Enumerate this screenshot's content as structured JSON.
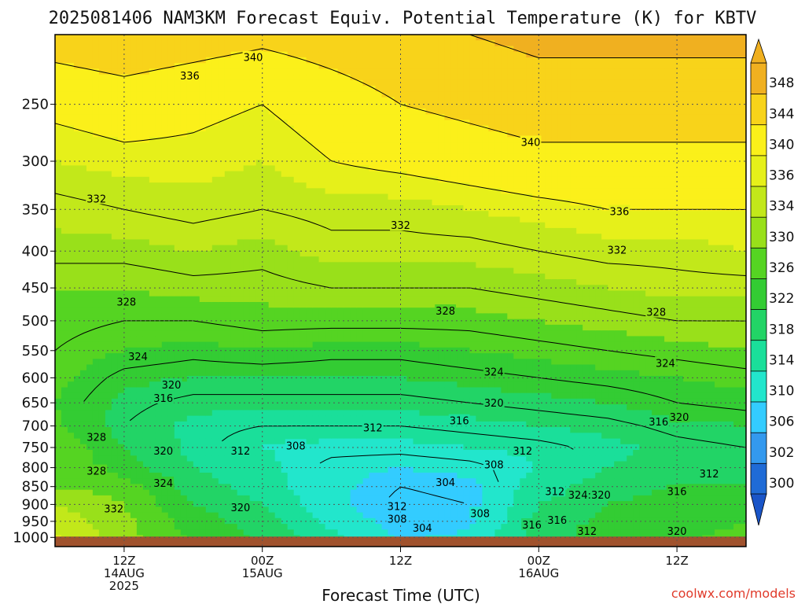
{
  "title": "2025081406 NAM3KM Forecast Equiv. Potential Temperature (K) for KBTV",
  "credit": "coolwx.com/models",
  "chart_data": {
    "type": "heatmap",
    "title": "2025081406 NAM3KM Forecast Equiv. Potential Temperature (K) for KBTV",
    "xlabel": "Forecast Time (UTC)",
    "ylabel": "",
    "y_scale": "log",
    "y_reversed": true,
    "xlim": [
      6,
      66
    ],
    "ylim": [
      1030,
      200
    ],
    "x_ticks": [
      {
        "x": 12,
        "lines": [
          "12Z",
          "14AUG",
          "2025"
        ]
      },
      {
        "x": 24,
        "lines": [
          "00Z",
          "15AUG"
        ]
      },
      {
        "x": 36,
        "lines": [
          "12Z"
        ]
      },
      {
        "x": 48,
        "lines": [
          "00Z",
          "16AUG"
        ]
      },
      {
        "x": 60,
        "lines": [
          "12Z"
        ]
      }
    ],
    "y_ticks": [
      250,
      300,
      350,
      400,
      450,
      500,
      550,
      600,
      650,
      700,
      750,
      800,
      850,
      900,
      950,
      1000
    ],
    "grid": true,
    "ground_level": 1000,
    "colorbar": {
      "levels": [
        300,
        302,
        306,
        310,
        314,
        318,
        322,
        326,
        330,
        334,
        336,
        340,
        344,
        348
      ],
      "colors": [
        "#1f6bd6",
        "#3399ee",
        "#33ccff",
        "#22e6cc",
        "#1adf9a",
        "#22d466",
        "#33cc33",
        "#55d422",
        "#99e01a",
        "#c2e81a",
        "#e6f01a",
        "#fbf01a",
        "#f8d31a",
        "#f0b020"
      ]
    },
    "profiles": [
      {
        "x": 6,
        "theta_e": [
          [
            1030,
            336
          ],
          [
            950,
            333
          ],
          [
            900,
            330
          ],
          [
            850,
            326
          ],
          [
            800,
            324
          ],
          [
            750,
            326
          ],
          [
            700,
            323
          ],
          [
            650,
            322
          ],
          [
            600,
            323
          ],
          [
            550,
            324
          ],
          [
            500,
            325
          ],
          [
            450,
            326
          ],
          [
            400,
            329
          ],
          [
            350,
            331
          ],
          [
            300,
            334
          ],
          [
            250,
            337
          ],
          [
            200,
            342
          ]
        ]
      },
      {
        "x": 12,
        "theta_e": [
          [
            1030,
            328
          ],
          [
            950,
            327
          ],
          [
            900,
            326
          ],
          [
            850,
            324
          ],
          [
            800,
            320
          ],
          [
            750,
            318
          ],
          [
            700,
            316
          ],
          [
            650,
            317
          ],
          [
            600,
            319
          ],
          [
            550,
            322
          ],
          [
            500,
            324
          ],
          [
            450,
            326
          ],
          [
            400,
            329
          ],
          [
            350,
            332
          ],
          [
            300,
            335
          ],
          [
            250,
            338
          ],
          [
            200,
            343
          ]
        ]
      },
      {
        "x": 18,
        "theta_e": [
          [
            1030,
            322
          ],
          [
            950,
            320
          ],
          [
            900,
            318
          ],
          [
            850,
            316
          ],
          [
            800,
            314
          ],
          [
            750,
            313
          ],
          [
            700,
            313
          ],
          [
            650,
            315
          ],
          [
            600,
            318
          ],
          [
            550,
            321
          ],
          [
            500,
            324
          ],
          [
            450,
            327
          ],
          [
            400,
            330
          ],
          [
            350,
            333
          ],
          [
            300,
            335
          ],
          [
            250,
            337
          ],
          [
            200,
            342
          ]
        ]
      },
      {
        "x": 24,
        "theta_e": [
          [
            1030,
            318
          ],
          [
            950,
            316
          ],
          [
            900,
            314
          ],
          [
            850,
            312
          ],
          [
            800,
            311
          ],
          [
            750,
            310
          ],
          [
            700,
            312
          ],
          [
            650,
            315
          ],
          [
            600,
            318
          ],
          [
            550,
            322
          ],
          [
            500,
            325
          ],
          [
            450,
            327
          ],
          [
            400,
            329
          ],
          [
            350,
            332
          ],
          [
            300,
            334
          ],
          [
            250,
            336
          ],
          [
            200,
            341
          ]
        ]
      },
      {
        "x": 30,
        "theta_e": [
          [
            1030,
            312
          ],
          [
            950,
            309
          ],
          [
            900,
            307
          ],
          [
            850,
            307
          ],
          [
            800,
            307
          ],
          [
            750,
            309
          ],
          [
            700,
            312
          ],
          [
            650,
            315
          ],
          [
            600,
            318
          ],
          [
            550,
            321
          ],
          [
            500,
            325
          ],
          [
            450,
            328
          ],
          [
            400,
            331
          ],
          [
            350,
            333
          ],
          [
            300,
            336
          ],
          [
            250,
            338
          ],
          [
            200,
            342
          ]
        ]
      },
      {
        "x": 36,
        "theta_e": [
          [
            1030,
            306
          ],
          [
            950,
            304
          ],
          [
            900,
            303
          ],
          [
            850,
            304
          ],
          [
            800,
            306
          ],
          [
            750,
            309
          ],
          [
            700,
            312
          ],
          [
            650,
            315
          ],
          [
            600,
            318
          ],
          [
            550,
            321
          ],
          [
            500,
            325
          ],
          [
            450,
            328
          ],
          [
            400,
            331
          ],
          [
            350,
            333
          ],
          [
            300,
            337
          ],
          [
            250,
            340
          ],
          [
            200,
            343
          ]
        ]
      },
      {
        "x": 42,
        "theta_e": [
          [
            1030,
            308
          ],
          [
            950,
            305
          ],
          [
            900,
            304
          ],
          [
            850,
            305
          ],
          [
            800,
            307
          ],
          [
            750,
            310
          ],
          [
            700,
            313
          ],
          [
            650,
            316
          ],
          [
            600,
            319
          ],
          [
            550,
            322
          ],
          [
            500,
            325
          ],
          [
            450,
            328
          ],
          [
            400,
            331
          ],
          [
            350,
            334
          ],
          [
            300,
            338
          ],
          [
            250,
            341
          ],
          [
            200,
            344
          ]
        ]
      },
      {
        "x": 48,
        "theta_e": [
          [
            1030,
            316
          ],
          [
            950,
            315
          ],
          [
            900,
            314
          ],
          [
            850,
            312
          ],
          [
            800,
            310
          ],
          [
            750,
            311
          ],
          [
            700,
            314
          ],
          [
            650,
            317
          ],
          [
            600,
            320
          ],
          [
            550,
            323
          ],
          [
            500,
            326
          ],
          [
            450,
            329
          ],
          [
            400,
            332
          ],
          [
            350,
            335
          ],
          [
            300,
            339
          ],
          [
            250,
            342
          ],
          [
            200,
            345
          ]
        ]
      },
      {
        "x": 54,
        "theta_e": [
          [
            1030,
            320
          ],
          [
            950,
            319
          ],
          [
            900,
            318
          ],
          [
            850,
            316
          ],
          [
            800,
            314
          ],
          [
            750,
            313
          ],
          [
            700,
            315
          ],
          [
            650,
            318
          ],
          [
            600,
            321
          ],
          [
            550,
            324
          ],
          [
            500,
            327
          ],
          [
            450,
            330
          ],
          [
            400,
            333
          ],
          [
            350,
            336
          ],
          [
            300,
            339
          ],
          [
            250,
            342
          ],
          [
            200,
            345
          ]
        ]
      },
      {
        "x": 60,
        "theta_e": [
          [
            1030,
            322
          ],
          [
            950,
            321
          ],
          [
            900,
            320
          ],
          [
            850,
            318
          ],
          [
            800,
            316
          ],
          [
            750,
            315
          ],
          [
            700,
            317
          ],
          [
            650,
            320
          ],
          [
            600,
            322
          ],
          [
            550,
            325
          ],
          [
            500,
            328
          ],
          [
            450,
            331
          ],
          [
            400,
            333
          ],
          [
            350,
            336
          ],
          [
            300,
            339
          ],
          [
            250,
            342
          ],
          [
            200,
            345
          ]
        ]
      },
      {
        "x": 66,
        "theta_e": [
          [
            1030,
            323
          ],
          [
            950,
            322
          ],
          [
            900,
            321
          ],
          [
            850,
            319
          ],
          [
            800,
            314
          ],
          [
            750,
            316
          ],
          [
            700,
            318
          ],
          [
            650,
            321
          ],
          [
            600,
            323
          ],
          [
            550,
            326
          ],
          [
            500,
            328
          ],
          [
            450,
            331
          ],
          [
            400,
            334
          ],
          [
            350,
            336
          ],
          [
            300,
            339
          ],
          [
            250,
            342
          ],
          [
            200,
            345
          ]
        ]
      }
    ],
    "contour_labels": [
      {
        "x": 23.2,
        "p": 215,
        "text": "340"
      },
      {
        "x": 17.7,
        "p": 228,
        "text": "336"
      },
      {
        "x": 9.6,
        "p": 338,
        "text": "332"
      },
      {
        "x": 12.2,
        "p": 470,
        "text": "328"
      },
      {
        "x": 13.2,
        "p": 560,
        "text": "324"
      },
      {
        "x": 16.1,
        "p": 613,
        "text": "320"
      },
      {
        "x": 15.4,
        "p": 640,
        "text": "316"
      },
      {
        "x": 9.6,
        "p": 725,
        "text": "328"
      },
      {
        "x": 15.4,
        "p": 758,
        "text": "320"
      },
      {
        "x": 9.6,
        "p": 808,
        "text": "328"
      },
      {
        "x": 15.4,
        "p": 840,
        "text": "324"
      },
      {
        "x": 11.1,
        "p": 912,
        "text": "332"
      },
      {
        "x": 22.1,
        "p": 758,
        "text": "312"
      },
      {
        "x": 22.1,
        "p": 908,
        "text": "320"
      },
      {
        "x": 26.9,
        "p": 745,
        "text": "308"
      },
      {
        "x": 33.6,
        "p": 703,
        "text": "312"
      },
      {
        "x": 36.0,
        "p": 368,
        "text": "332"
      },
      {
        "x": 39.9,
        "p": 484,
        "text": "328"
      },
      {
        "x": 44.1,
        "p": 588,
        "text": "324"
      },
      {
        "x": 44.1,
        "p": 650,
        "text": "320"
      },
      {
        "x": 41.1,
        "p": 688,
        "text": "316"
      },
      {
        "x": 44.1,
        "p": 792,
        "text": "308"
      },
      {
        "x": 39.9,
        "p": 838,
        "text": "304"
      },
      {
        "x": 35.7,
        "p": 905,
        "text": "312"
      },
      {
        "x": 35.7,
        "p": 942,
        "text": "308"
      },
      {
        "x": 37.9,
        "p": 970,
        "text": "304"
      },
      {
        "x": 42.9,
        "p": 925,
        "text": "308"
      },
      {
        "x": 47.3,
        "p": 282,
        "text": "340"
      },
      {
        "x": 46.6,
        "p": 758,
        "text": "312"
      },
      {
        "x": 55.0,
        "p": 352,
        "text": "336"
      },
      {
        "x": 54.8,
        "p": 398,
        "text": "332"
      },
      {
        "x": 58.2,
        "p": 486,
        "text": "328"
      },
      {
        "x": 59.0,
        "p": 572,
        "text": "324"
      },
      {
        "x": 60.2,
        "p": 680,
        "text": "320"
      },
      {
        "x": 58.4,
        "p": 690,
        "text": "316"
      },
      {
        "x": 49.4,
        "p": 862,
        "text": "312"
      },
      {
        "x": 52.4,
        "p": 872,
        "text": "324:320"
      },
      {
        "x": 49.6,
        "p": 945,
        "text": "316"
      },
      {
        "x": 52.2,
        "p": 980,
        "text": "312"
      },
      {
        "x": 47.4,
        "p": 960,
        "text": "316"
      },
      {
        "x": 60.0,
        "p": 980,
        "text": "320"
      },
      {
        "x": 60.0,
        "p": 862,
        "text": "316"
      },
      {
        "x": 62.8,
        "p": 815,
        "text": "312"
      }
    ]
  }
}
